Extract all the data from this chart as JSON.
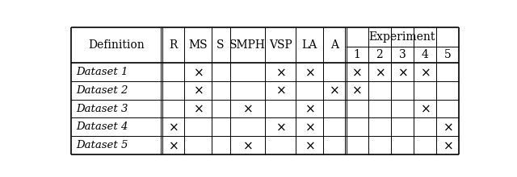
{
  "fig_width": 6.4,
  "fig_height": 2.2,
  "dpi": 100,
  "rows": [
    [
      "Dataset 1",
      "",
      "x",
      "",
      "",
      "x",
      "x",
      "",
      "x",
      "x",
      "x",
      "x",
      ""
    ],
    [
      "Dataset 2",
      "",
      "x",
      "",
      "",
      "x",
      "",
      "x",
      "x",
      "",
      "",
      "",
      ""
    ],
    [
      "Dataset 3",
      "",
      "x",
      "",
      "x",
      "",
      "x",
      "",
      "",
      "",
      "",
      "x",
      ""
    ],
    [
      "Dataset 4",
      "x",
      "",
      "",
      "",
      "x",
      "x",
      "",
      "",
      "",
      "",
      "",
      "x"
    ],
    [
      "Dataset 5",
      "x",
      "",
      "",
      "x",
      "",
      "x",
      "",
      "",
      "",
      "",
      "",
      "x"
    ]
  ],
  "background_color": "#ffffff",
  "text_color": "#000000",
  "line_color": "#000000",
  "header_fontsize": 10,
  "data_fontsize": 9.5,
  "mark_fontsize": 11
}
